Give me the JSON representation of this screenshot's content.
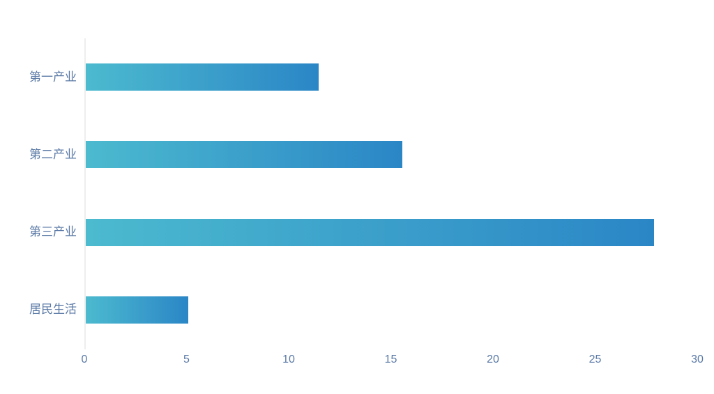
{
  "chart_data": {
    "type": "bar",
    "orientation": "horizontal",
    "title": "",
    "xlabel": "",
    "ylabel": "",
    "categories": [
      "第一产业",
      "第二产业",
      "第三产业",
      "居民生活"
    ],
    "values": [
      11.4,
      15.5,
      27.8,
      5.0
    ],
    "xlim": [
      0,
      30
    ],
    "x_ticks": [
      "0",
      "5",
      "10",
      "15",
      "20",
      "25",
      "30"
    ],
    "grid": "off",
    "legend": "none",
    "colors": {
      "bar_gradient_start": "#4cbacf",
      "bar_gradient_end": "#2b86c6",
      "axis_label": "#5a79a5",
      "axis_line": "#eeeeee",
      "background": "#ffffff"
    }
  }
}
